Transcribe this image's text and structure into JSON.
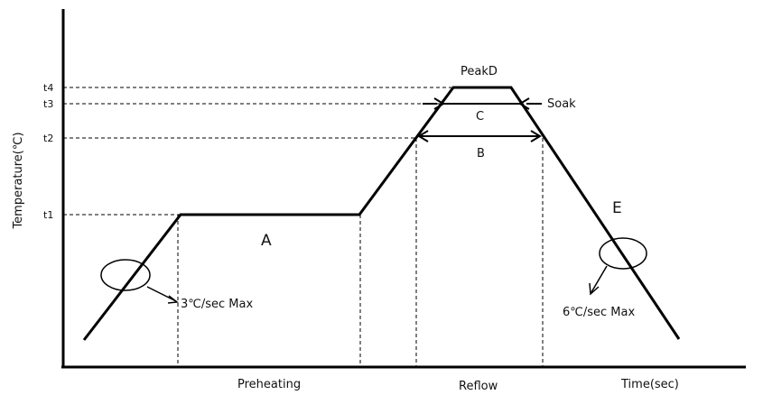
{
  "y_axis_label": "Temperature(℃)",
  "ticks": {
    "t1": "t1",
    "t2": "t2",
    "t3": "t3",
    "t4": "t4"
  },
  "regions": {
    "a": "A",
    "b": "B",
    "c": "C",
    "peak": "PeakD",
    "e": "E",
    "soak": "Soak"
  },
  "annotations": {
    "ramp_up": "3℃/sec Max",
    "ramp_down": "6℃/sec Max"
  },
  "x_labels": {
    "preheating": "Preheating",
    "reflow": "Reflow",
    "time": "Time(sec)"
  },
  "colors": {
    "line": "#000000",
    "text": "#111111"
  }
}
